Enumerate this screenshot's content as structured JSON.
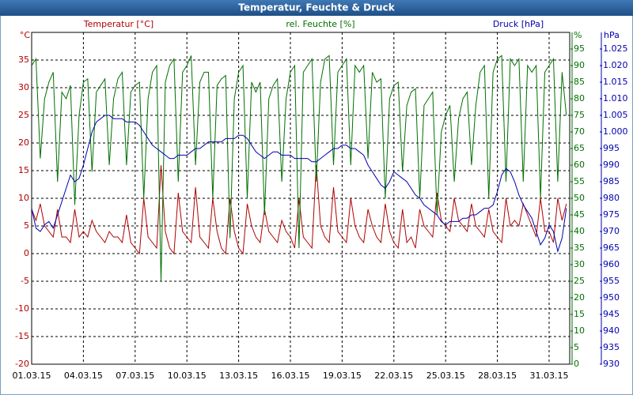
{
  "chart_data": {
    "type": "line",
    "title": "Temperatur, Feuchte & Druck",
    "y_unit": "°C",
    "y2_unit": "%",
    "y3_unit": "hPa",
    "categories": [
      "01.03.15",
      null,
      null,
      null,
      null,
      null,
      null,
      null,
      null,
      null,
      null,
      null,
      "04.03.15",
      null,
      null,
      null,
      null,
      null,
      null,
      null,
      null,
      null,
      null,
      null,
      "07.03.15",
      null,
      null,
      null,
      null,
      null,
      null,
      null,
      null,
      null,
      null,
      null,
      "10.03.15",
      null,
      null,
      null,
      null,
      null,
      null,
      null,
      null,
      null,
      null,
      null,
      "13.03.15",
      null,
      null,
      null,
      null,
      null,
      null,
      null,
      null,
      null,
      null,
      null,
      "16.03.15",
      null,
      null,
      null,
      null,
      null,
      null,
      null,
      null,
      null,
      null,
      null,
      "19.03.15",
      null,
      null,
      null,
      null,
      null,
      null,
      null,
      null,
      null,
      null,
      null,
      "22.03.15",
      null,
      null,
      null,
      null,
      null,
      null,
      null,
      null,
      null,
      null,
      null,
      "25.03.15",
      null,
      null,
      null,
      null,
      null,
      null,
      null,
      null,
      null,
      null,
      null,
      "28.03.15",
      null,
      null,
      null,
      null,
      null,
      null,
      null,
      null,
      null,
      null,
      null,
      "31.03.15",
      null,
      null,
      null,
      null
    ],
    "ylim": [
      -20,
      40
    ],
    "yticks": [
      -20,
      -15,
      -10,
      -5,
      0,
      5,
      10,
      15,
      20,
      25,
      30,
      35
    ],
    "y2lim": [
      0,
      100
    ],
    "y2ticks": [
      0,
      5,
      10,
      15,
      20,
      25,
      30,
      35,
      40,
      45,
      50,
      55,
      60,
      65,
      70,
      75,
      80,
      85,
      90,
      95
    ],
    "y3lim": [
      930,
      1030
    ],
    "y3ticks": [
      930,
      935,
      940,
      945,
      950,
      955,
      960,
      965,
      970,
      975,
      980,
      985,
      990,
      995,
      {
        "value": 1000,
        "label": "1.000"
      },
      {
        "value": 1005,
        "label": "1.005"
      },
      {
        "value": 1010,
        "label": "1.010"
      },
      {
        "value": 1015,
        "label": "1.015"
      },
      {
        "value": 1020,
        "label": "1.020"
      },
      {
        "value": 1025,
        "label": "1.025"
      }
    ],
    "grid": true,
    "series": [
      {
        "name": "Temperatur [°C]",
        "color": "#b00000",
        "axis": "y",
        "values": [
          8,
          6,
          9,
          5,
          4,
          3,
          8,
          3,
          3,
          2,
          8,
          3,
          4,
          3,
          6,
          4,
          3,
          2,
          4,
          3,
          3,
          2,
          7,
          2,
          1,
          0,
          10,
          3,
          2,
          1,
          16,
          4,
          1,
          0,
          11,
          4,
          3,
          2,
          12,
          3,
          2,
          1,
          10,
          4,
          1,
          0,
          10,
          4,
          1,
          0,
          9,
          5,
          3,
          2,
          8,
          4,
          3,
          2,
          6,
          4,
          3,
          1,
          10,
          3,
          2,
          1,
          16,
          5,
          3,
          2,
          12,
          4,
          3,
          2,
          10,
          5,
          3,
          2,
          8,
          5,
          3,
          2,
          9,
          4,
          2,
          1,
          8,
          2,
          3,
          1,
          8,
          5,
          4,
          3,
          11,
          6,
          5,
          4,
          10,
          6,
          5,
          4,
          9,
          5,
          4,
          3,
          8,
          4,
          3,
          2,
          10,
          5,
          6,
          5,
          9,
          7,
          5,
          3,
          10,
          4,
          4,
          2,
          10,
          6,
          9
        ]
      },
      {
        "name": "rel. Feuchte [%]",
        "color": "#007000",
        "axis": "y2",
        "values": [
          90,
          92,
          62,
          80,
          85,
          88,
          55,
          82,
          80,
          84,
          48,
          75,
          85,
          86,
          58,
          82,
          84,
          86,
          60,
          80,
          86,
          88,
          60,
          82,
          84,
          85,
          50,
          80,
          88,
          90,
          25,
          85,
          90,
          92,
          55,
          88,
          90,
          93,
          60,
          85,
          88,
          88,
          50,
          84,
          86,
          87,
          38,
          80,
          88,
          90,
          50,
          85,
          82,
          85,
          45,
          80,
          84,
          86,
          55,
          80,
          88,
          90,
          35,
          88,
          90,
          92,
          55,
          85,
          92,
          93,
          60,
          88,
          90,
          92,
          60,
          90,
          88,
          90,
          62,
          88,
          85,
          86,
          50,
          80,
          84,
          85,
          58,
          78,
          82,
          83,
          50,
          78,
          80,
          82,
          45,
          70,
          75,
          78,
          55,
          74,
          80,
          82,
          60,
          78,
          88,
          90,
          50,
          88,
          92,
          93,
          55,
          92,
          90,
          92,
          55,
          90,
          88,
          90,
          50,
          88,
          90,
          92,
          55,
          88,
          75
        ]
      },
      {
        "name": "Druck [hPa]",
        "color": "#0000b0",
        "axis": "y3",
        "values": [
          977,
          971,
          970,
          972,
          973,
          971,
          975,
          979,
          983,
          987,
          985,
          986,
          990,
          995,
          1000,
          1003,
          1004,
          1005,
          1005,
          1004,
          1004,
          1004,
          1003,
          1003,
          1003,
          1002,
          1000,
          998,
          996,
          995,
          994,
          993,
          992,
          992,
          993,
          993,
          993,
          994,
          995,
          995,
          996,
          997,
          997,
          997,
          997,
          998,
          998,
          998,
          999,
          999,
          998,
          996,
          994,
          993,
          992,
          993,
          994,
          994,
          993,
          993,
          993,
          992,
          992,
          992,
          992,
          991,
          991,
          992,
          993,
          994,
          995,
          995,
          996,
          996,
          995,
          995,
          994,
          993,
          990,
          988,
          986,
          984,
          983,
          985,
          988,
          987,
          986,
          985,
          983,
          981,
          980,
          978,
          977,
          976,
          975,
          973,
          972,
          973,
          973,
          973,
          974,
          974,
          975,
          975,
          976,
          977,
          977,
          978,
          982,
          987,
          989,
          988,
          985,
          981,
          978,
          976,
          974,
          970,
          966,
          968,
          972,
          970,
          964,
          968,
          977
        ]
      }
    ]
  }
}
